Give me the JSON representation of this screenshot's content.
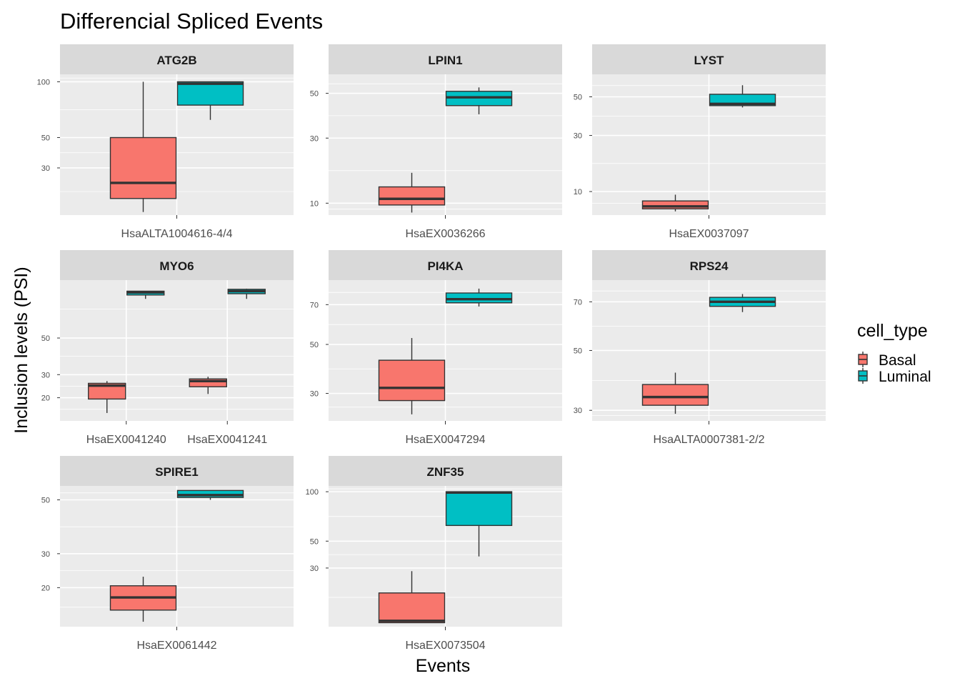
{
  "chart_data": {
    "type": "boxplot",
    "title": "Differencial Spliced Events",
    "xlabel": "Events",
    "ylabel": "Inclusion levels (PSI)",
    "y_scale": "sqrt",
    "grid": true,
    "facet_layout": "3 columns, free scales",
    "legend": {
      "title": "cell_type",
      "position": "right",
      "entries": [
        {
          "name": "Basal",
          "color": "#F8766D"
        },
        {
          "name": "Luminal",
          "color": "#00BFC4"
        }
      ]
    },
    "panels": [
      {
        "name": "ATG2B",
        "ylim": [
          9,
          108
        ],
        "yticks": [
          30,
          50,
          100
        ],
        "categories": [
          "HsaALTA1004616-4/4"
        ],
        "boxes": [
          {
            "category": "HsaALTA1004616-4/4",
            "group": "Basal",
            "min": 10,
            "q1": 15,
            "median": 22,
            "q3": 50,
            "max": 100
          },
          {
            "category": "HsaALTA1004616-4/4",
            "group": "Luminal",
            "min": 64,
            "q1": 77,
            "median": 98,
            "q3": 100,
            "max": 100
          }
        ]
      },
      {
        "name": "LPIN1",
        "ylim": [
          7.5,
          60
        ],
        "yticks": [
          10,
          30,
          50
        ],
        "categories": [
          "HsaEX0036266"
        ],
        "boxes": [
          {
            "category": "HsaEX0036266",
            "group": "Basal",
            "min": 8,
            "q1": 9.6,
            "median": 11,
            "q3": 14,
            "max": 18
          },
          {
            "category": "HsaEX0036266",
            "group": "Luminal",
            "min": 40,
            "q1": 44,
            "median": 48,
            "q3": 51,
            "max": 53
          }
        ]
      },
      {
        "name": "LYST",
        "ylim": [
          4.8,
          64
        ],
        "yticks": [
          10,
          30,
          50
        ],
        "categories": [
          "HsaEX0037097"
        ],
        "boxes": [
          {
            "category": "HsaEX0037097",
            "group": "Basal",
            "min": 5.5,
            "q1": 6,
            "median": 6.5,
            "q3": 7.7,
            "max": 9.2
          },
          {
            "category": "HsaEX0037097",
            "group": "Luminal",
            "min": 44,
            "q1": 45,
            "median": 46,
            "q3": 51.5,
            "max": 57
          }
        ]
      },
      {
        "name": "MYO6",
        "ylim": [
          12,
          92
        ],
        "yticks": [
          20,
          30,
          50
        ],
        "categories": [
          "HsaEX0041240",
          "HsaEX0041241"
        ],
        "boxes": [
          {
            "category": "HsaEX0041240",
            "group": "Basal",
            "min": 14.5,
            "q1": 19.5,
            "median": 25,
            "q3": 26,
            "max": 27
          },
          {
            "category": "HsaEX0041240",
            "group": "Luminal",
            "min": 77,
            "q1": 80,
            "median": 82,
            "q3": 83,
            "max": 83
          },
          {
            "category": "HsaEX0041241",
            "group": "Basal",
            "min": 21.5,
            "q1": 24.5,
            "median": 27,
            "q3": 28,
            "max": 29
          },
          {
            "category": "HsaEX0041241",
            "group": "Luminal",
            "min": 77,
            "q1": 81,
            "median": 83,
            "q3": 84.5,
            "max": 85
          }
        ]
      },
      {
        "name": "PI4KA",
        "ylim": [
          21,
          84
        ],
        "yticks": [
          30,
          50,
          70
        ],
        "categories": [
          "HsaEX0047294"
        ],
        "boxes": [
          {
            "category": "HsaEX0047294",
            "group": "Basal",
            "min": 23,
            "q1": 27.5,
            "median": 32,
            "q3": 43,
            "max": 53
          },
          {
            "category": "HsaEX0047294",
            "group": "Luminal",
            "min": 69,
            "q1": 71,
            "median": 73,
            "q3": 76.5,
            "max": 79
          }
        ]
      },
      {
        "name": "RPS24",
        "ylim": [
          27,
          80
        ],
        "yticks": [
          30,
          50,
          70
        ],
        "categories": [
          "HsaALTA0007381-2/2"
        ],
        "boxes": [
          {
            "category": "HsaALTA0007381-2/2",
            "group": "Basal",
            "min": 29,
            "q1": 31.5,
            "median": 34,
            "q3": 38,
            "max": 42
          },
          {
            "category": "HsaALTA0007381-2/2",
            "group": "Luminal",
            "min": 65.5,
            "q1": 68,
            "median": 70,
            "q3": 72,
            "max": 73.5
          }
        ]
      },
      {
        "name": "SPIRE1",
        "ylim": [
          11,
          56
        ],
        "yticks": [
          20,
          30,
          50
        ],
        "categories": [
          "HsaEX0061442"
        ],
        "boxes": [
          {
            "category": "HsaEX0061442",
            "group": "Basal",
            "min": 12,
            "q1": 14.5,
            "median": 17.5,
            "q3": 20.5,
            "max": 23
          },
          {
            "category": "HsaEX0061442",
            "group": "Luminal",
            "min": 50,
            "q1": 51,
            "median": 52,
            "q3": 54,
            "max": 54
          }
        ]
      },
      {
        "name": "ZNF35",
        "ylim": [
          4,
          107
        ],
        "yticks": [
          30,
          50,
          100
        ],
        "categories": [
          "HsaEX0073504"
        ],
        "boxes": [
          {
            "category": "HsaEX0073504",
            "group": "Basal",
            "min": 5,
            "q1": 5,
            "median": 5.5,
            "q3": 16,
            "max": 28
          },
          {
            "category": "HsaEX0073504",
            "group": "Luminal",
            "min": 38,
            "q1": 64,
            "median": 99,
            "q3": 100,
            "max": 100
          }
        ]
      }
    ]
  }
}
